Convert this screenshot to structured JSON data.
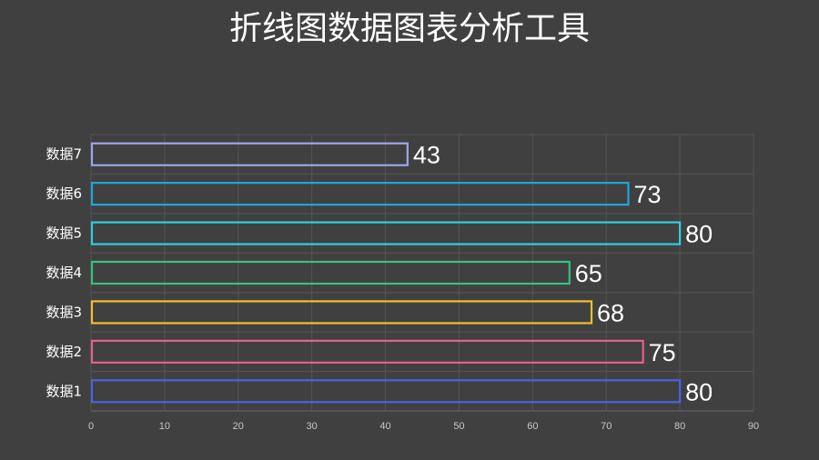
{
  "title": "折线图数据图表分析工具",
  "chart_data": {
    "type": "bar",
    "orientation": "horizontal",
    "categories": [
      "数据1",
      "数据2",
      "数据3",
      "数据4",
      "数据5",
      "数据6",
      "数据7"
    ],
    "values": [
      80,
      75,
      68,
      65,
      80,
      73,
      43
    ],
    "colors": [
      "#4a62e6",
      "#e4638b",
      "#f2bf2c",
      "#35c17e",
      "#2fd0de",
      "#1fa6df",
      "#9da6eb"
    ],
    "xlim": [
      0,
      90
    ],
    "xticks": [
      0,
      10,
      20,
      30,
      40,
      50,
      60,
      70,
      80,
      90
    ],
    "grid": true,
    "bar_style": "outline",
    "data_labels": true
  }
}
